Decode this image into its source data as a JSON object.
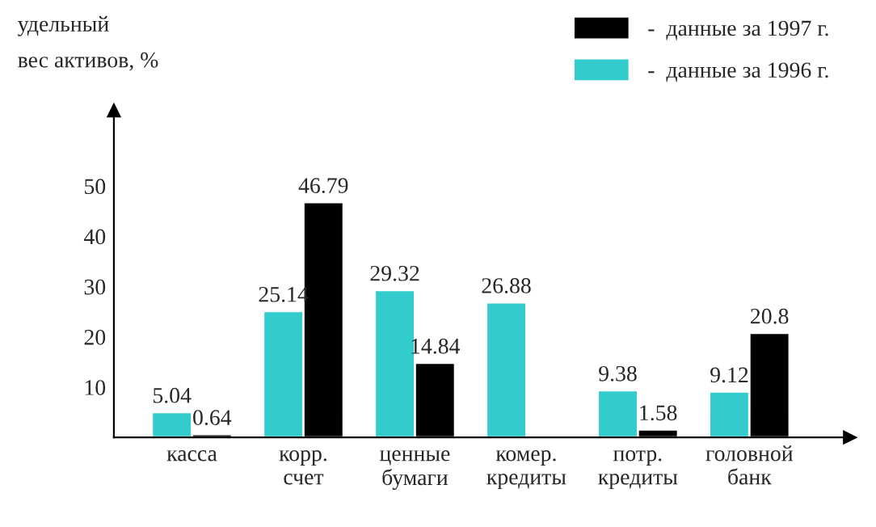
{
  "chart_data": {
    "type": "bar",
    "ylabel": "удельный\nвес активов, %",
    "categories": [
      "касса",
      "корр.\nсчет",
      "ценные\nбумаги",
      "комер.\nкредиты",
      "потр.\nкредиты",
      "головной\nбанк"
    ],
    "series": [
      {
        "name": "-  данные за 1996 г.",
        "color": "#33cccc",
        "values": [
          5.04,
          25.14,
          29.32,
          26.88,
          9.38,
          9.12
        ]
      },
      {
        "name": "-  данные за 1997 г.",
        "color": "#000000",
        "values": [
          0.64,
          46.79,
          14.84,
          null,
          1.58,
          20.8
        ]
      }
    ],
    "ylim": [
      0,
      65
    ],
    "yticks": [
      10,
      20,
      30,
      40,
      50
    ],
    "data_labels": true,
    "legend": "top right",
    "grid": false
  }
}
